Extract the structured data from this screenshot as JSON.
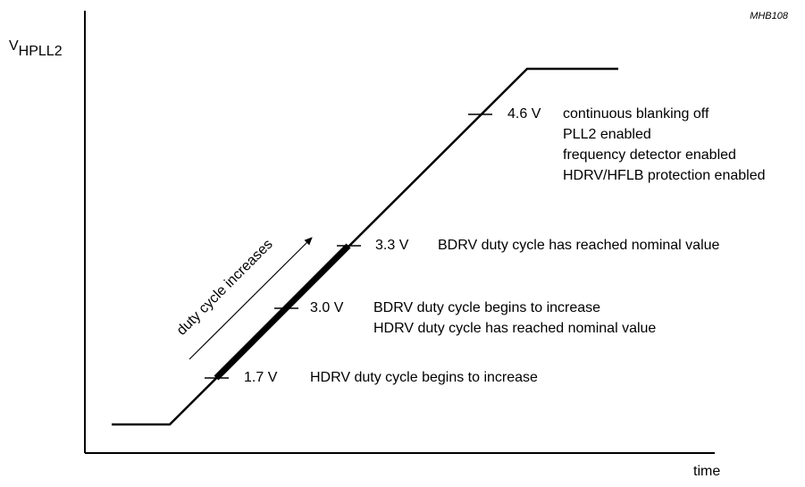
{
  "figure_id": "MHB108",
  "y_axis_label": {
    "main": "V",
    "subscript": "HPLL2"
  },
  "x_axis_label": "time",
  "arrow_label": "duty cycle increases",
  "levels": [
    {
      "voltage": "1.7 V",
      "notes": [
        "HDRV duty cycle begins to increase"
      ]
    },
    {
      "voltage": "3.0 V",
      "notes": [
        "BDRV duty cycle begins to increase",
        "HDRV duty cycle has reached nominal value"
      ]
    },
    {
      "voltage": "3.3 V",
      "notes": [
        "BDRV duty cycle has reached nominal value"
      ]
    },
    {
      "voltage": "4.6 V",
      "notes": [
        "continuous blanking off",
        "PLL2 enabled",
        "frequency detector enabled",
        "HDRV/HFLB protection enabled"
      ]
    }
  ]
}
